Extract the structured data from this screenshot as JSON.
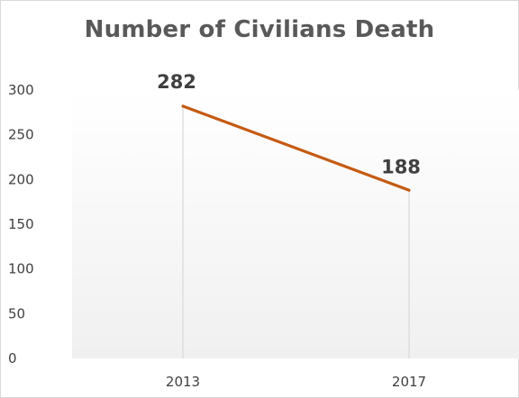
{
  "chart_data": {
    "type": "line",
    "title": "Number of Civilians Death",
    "categories": [
      "2013",
      "2017"
    ],
    "series": [
      {
        "values": [
          282,
          188
        ],
        "color": "#c55a11"
      }
    ],
    "data_labels": [
      "282",
      "188"
    ],
    "ylim": [
      0,
      300
    ],
    "yticks": [
      "0",
      "50",
      "100",
      "150",
      "200",
      "250",
      "300"
    ],
    "grid": false,
    "drop_lines": true,
    "plot_background": "gradient-light-gray"
  }
}
